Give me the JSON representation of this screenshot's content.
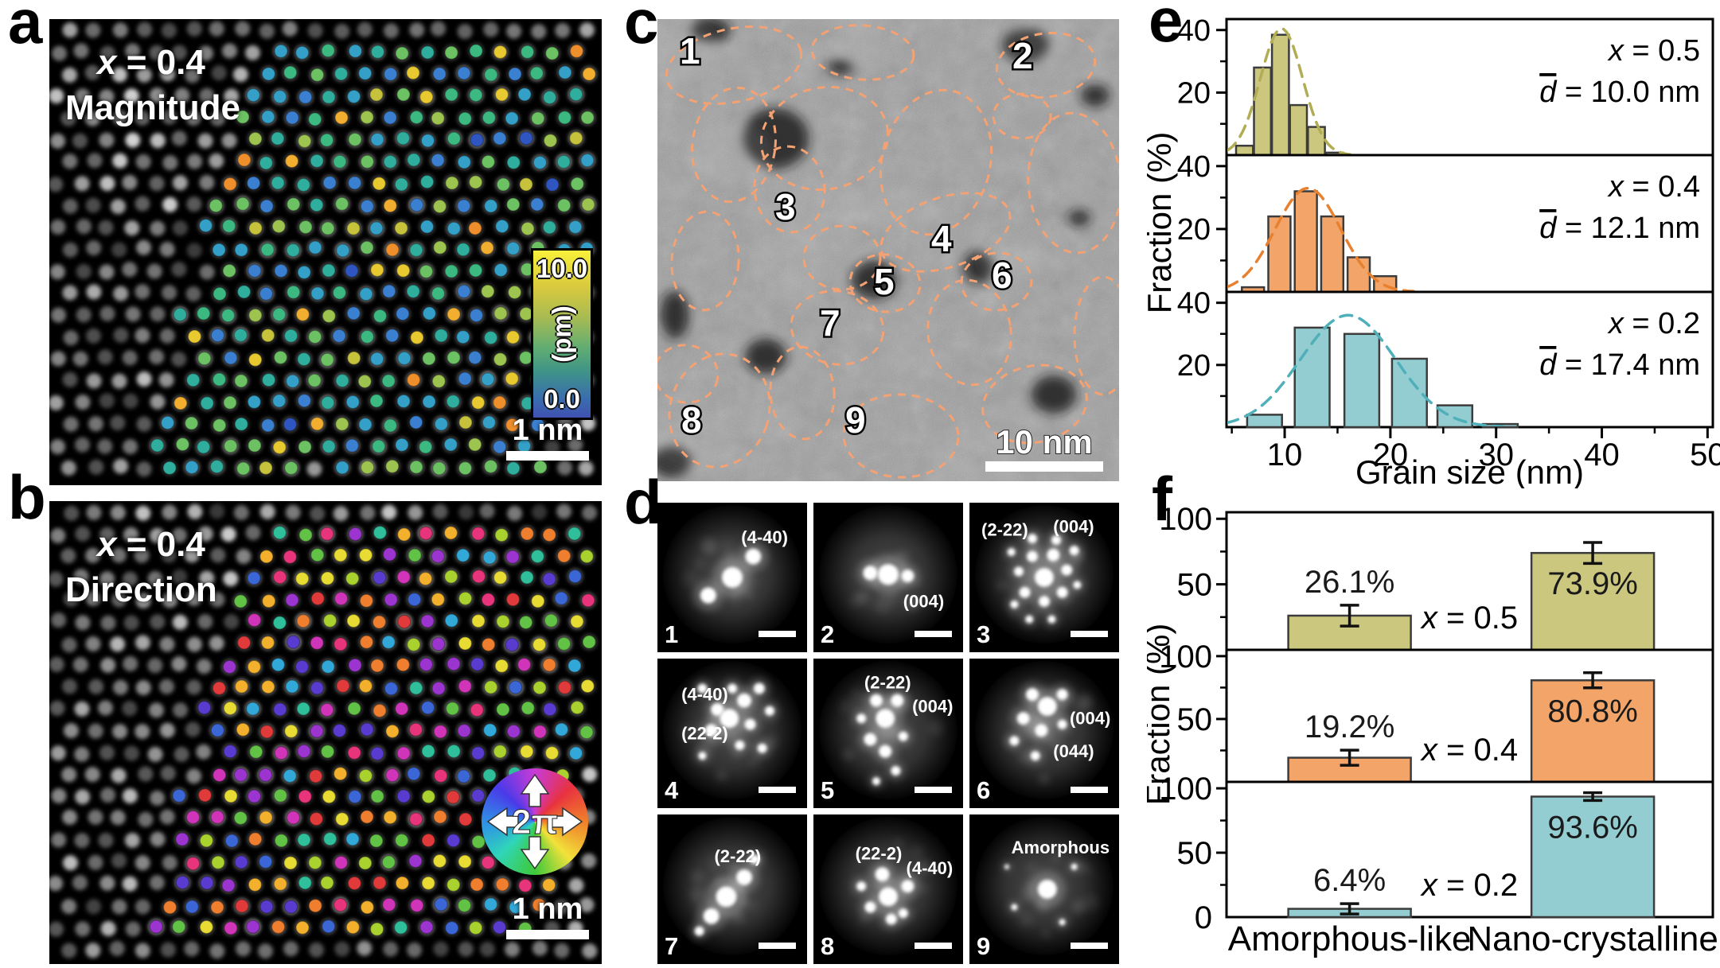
{
  "panels": {
    "a": {
      "letter": "a",
      "sym": "x",
      "eq": " = 0.4",
      "mode": "Magnitude",
      "scalebar": "1 nm",
      "colorbar": {
        "max": "10.0",
        "unit": "(pm)",
        "min": "0.0"
      }
    },
    "b": {
      "letter": "b",
      "sym": "x",
      "eq": " = 0.4",
      "mode": "Direction",
      "scalebar": "1 nm",
      "wheel": "2π"
    },
    "c": {
      "letter": "c",
      "scalebar": "10 nm",
      "numbers": [
        [
          "1",
          28,
          56
        ],
        [
          "2",
          446,
          62
        ],
        [
          "3",
          148,
          252
        ],
        [
          "4",
          344,
          292
        ],
        [
          "5",
          272,
          346
        ],
        [
          "6",
          420,
          338
        ],
        [
          "7",
          204,
          398
        ],
        [
          "8",
          30,
          520
        ],
        [
          "9",
          236,
          520
        ]
      ],
      "outlines": [
        [
          96,
          58,
          86,
          46,
          -12
        ],
        [
          258,
          42,
          64,
          34,
          4
        ],
        [
          488,
          58,
          62,
          40,
          -8
        ],
        [
          458,
          122,
          36,
          28,
          0
        ],
        [
          96,
          158,
          52,
          72,
          8
        ],
        [
          210,
          150,
          80,
          64,
          -10
        ],
        [
          166,
          214,
          44,
          54,
          -6
        ],
        [
          350,
          180,
          68,
          92,
          14
        ],
        [
          524,
          206,
          58,
          88,
          -4
        ],
        [
          60,
          304,
          42,
          62,
          4
        ],
        [
          232,
          300,
          48,
          40,
          0
        ],
        [
          362,
          268,
          84,
          44,
          -18
        ],
        [
          286,
          332,
          44,
          36,
          6
        ],
        [
          426,
          330,
          44,
          36,
          -4
        ],
        [
          226,
          388,
          58,
          46,
          8
        ],
        [
          392,
          394,
          52,
          66,
          -8
        ],
        [
          78,
          492,
          62,
          72,
          18
        ],
        [
          182,
          470,
          40,
          58,
          -4
        ],
        [
          306,
          524,
          72,
          52,
          2
        ],
        [
          474,
          484,
          66,
          48,
          -12
        ],
        [
          560,
          398,
          36,
          74,
          0
        ],
        [
          36,
          446,
          40,
          36,
          10
        ]
      ],
      "blobs": [
        [
          148,
          150,
          42,
          38
        ],
        [
          66,
          14,
          26,
          16
        ],
        [
          464,
          32,
          30,
          22
        ],
        [
          272,
          328,
          28,
          24
        ],
        [
          404,
          312,
          20,
          20
        ],
        [
          136,
          424,
          26,
          22
        ],
        [
          498,
          472,
          28,
          24
        ],
        [
          22,
          372,
          18,
          30
        ],
        [
          18,
          556,
          26,
          20
        ],
        [
          550,
          96,
          18,
          14
        ],
        [
          230,
          60,
          16,
          10
        ],
        [
          530,
          250,
          14,
          10
        ]
      ]
    },
    "d": {
      "letter": "d",
      "cells": [
        {
          "num": "1",
          "ann": [
            [
              "(4-40)",
              0.56,
              0.27
            ]
          ],
          "spots": [
            [
              0.5,
              0.5,
              13
            ],
            [
              0.64,
              0.36,
              10
            ],
            [
              0.34,
              0.62,
              10
            ]
          ]
        },
        {
          "num": "2",
          "ann": [
            [
              "(004)",
              0.6,
              0.7
            ]
          ],
          "spots": [
            [
              0.5,
              0.48,
              13
            ],
            [
              0.38,
              0.47,
              9
            ],
            [
              0.63,
              0.49,
              8
            ]
          ]
        },
        {
          "num": "3",
          "ann": [
            [
              "(2-22)",
              0.08,
              0.22
            ],
            [
              "(004)",
              0.56,
              0.2
            ]
          ],
          "spots": [
            [
              0.5,
              0.5,
              12
            ],
            [
              0.42,
              0.36,
              7
            ],
            [
              0.56,
              0.35,
              8
            ],
            [
              0.65,
              0.45,
              7
            ],
            [
              0.62,
              0.6,
              7
            ],
            [
              0.5,
              0.66,
              7
            ],
            [
              0.37,
              0.6,
              7
            ],
            [
              0.33,
              0.46,
              6
            ],
            [
              0.58,
              0.25,
              6
            ],
            [
              0.42,
              0.24,
              6
            ],
            [
              0.7,
              0.32,
              6
            ],
            [
              0.28,
              0.33,
              5
            ],
            [
              0.72,
              0.55,
              5
            ],
            [
              0.3,
              0.68,
              5
            ],
            [
              0.55,
              0.78,
              5
            ],
            [
              0.4,
              0.78,
              5
            ]
          ]
        },
        {
          "num": "4",
          "ann": [
            [
              "(4-40)",
              0.16,
              0.28
            ],
            [
              "(22-2)",
              0.16,
              0.54
            ]
          ],
          "spots": [
            [
              0.48,
              0.4,
              12
            ],
            [
              0.58,
              0.28,
              9
            ],
            [
              0.4,
              0.34,
              8
            ],
            [
              0.36,
              0.48,
              8
            ],
            [
              0.62,
              0.44,
              7
            ],
            [
              0.5,
              0.2,
              6
            ],
            [
              0.68,
              0.2,
              7
            ],
            [
              0.3,
              0.2,
              6
            ],
            [
              0.75,
              0.35,
              6
            ],
            [
              0.55,
              0.58,
              6
            ],
            [
              0.7,
              0.6,
              6
            ],
            [
              0.3,
              0.65,
              5
            ]
          ]
        },
        {
          "num": "5",
          "ann": [
            [
              "(2-22)",
              0.34,
              0.2
            ],
            [
              "(004)",
              0.66,
              0.36
            ]
          ],
          "spots": [
            [
              0.48,
              0.4,
              12
            ],
            [
              0.42,
              0.28,
              8
            ],
            [
              0.56,
              0.28,
              8
            ],
            [
              0.38,
              0.54,
              8
            ],
            [
              0.48,
              0.62,
              8
            ],
            [
              0.6,
              0.52,
              6
            ],
            [
              0.32,
              0.4,
              6
            ],
            [
              0.55,
              0.75,
              6
            ],
            [
              0.42,
              0.82,
              5
            ]
          ]
        },
        {
          "num": "6",
          "ann": [
            [
              "(004)",
              0.67,
              0.44
            ],
            [
              "(044)",
              0.56,
              0.66
            ]
          ],
          "spots": [
            [
              0.52,
              0.32,
              12
            ],
            [
              0.42,
              0.24,
              8
            ],
            [
              0.62,
              0.24,
              7
            ],
            [
              0.36,
              0.4,
              8
            ],
            [
              0.48,
              0.48,
              8
            ],
            [
              0.62,
              0.44,
              6
            ],
            [
              0.3,
              0.55,
              6
            ],
            [
              0.44,
              0.65,
              6
            ]
          ]
        },
        {
          "num": "7",
          "ann": [
            [
              "(2-22)",
              0.38,
              0.32
            ]
          ],
          "spots": [
            [
              0.46,
              0.55,
              13
            ],
            [
              0.58,
              0.42,
              10
            ],
            [
              0.36,
              0.68,
              10
            ],
            [
              0.28,
              0.78,
              6
            ],
            [
              0.65,
              0.3,
              6
            ]
          ]
        },
        {
          "num": "8",
          "ann": [
            [
              "(22-2)",
              0.28,
              0.3
            ],
            [
              "(4-40)",
              0.62,
              0.4
            ]
          ],
          "spots": [
            [
              0.5,
              0.55,
              12
            ],
            [
              0.46,
              0.4,
              9
            ],
            [
              0.63,
              0.48,
              8
            ],
            [
              0.38,
              0.62,
              7
            ],
            [
              0.52,
              0.7,
              7
            ],
            [
              0.32,
              0.48,
              6
            ],
            [
              0.6,
              0.66,
              6
            ]
          ]
        },
        {
          "num": "9",
          "ann": [
            [
              "Amorphous",
              0.28,
              0.26
            ]
          ],
          "spots": [
            [
              0.52,
              0.5,
              12
            ],
            [
              0.7,
              0.35,
              4
            ],
            [
              0.3,
              0.62,
              4
            ],
            [
              0.62,
              0.72,
              4
            ],
            [
              0.25,
              0.35,
              3
            ]
          ]
        }
      ]
    },
    "e": {
      "letter": "e"
    },
    "f": {
      "letter": "f"
    }
  },
  "palettes": {
    "magnitude": [
      [
        "#2f55c0",
        2
      ],
      [
        "#3a7fd0",
        7
      ],
      [
        "#34a0c8",
        9
      ],
      [
        "#2fae9e",
        10
      ],
      [
        "#3cb980",
        9
      ],
      [
        "#6cc163",
        7
      ],
      [
        "#9cc44f",
        5
      ],
      [
        "#c6c23c",
        4
      ],
      [
        "#e8c930",
        4
      ],
      [
        "#f2ae2e",
        3
      ],
      [
        "#ee8f2c",
        1
      ]
    ],
    "direction": [
      "#e03a3a",
      "#ef7f2e",
      "#f2b02c",
      "#e8dc34",
      "#aad22f",
      "#62c246",
      "#2fbf9a",
      "#32a8d8",
      "#3b66d6",
      "#5a3bd0",
      "#9c34d0",
      "#d034b8",
      "#e8347a"
    ]
  },
  "chart_data": [
    {
      "id": "e",
      "type": "bar",
      "variant": "stacked-histograms",
      "xlabel": "Grain size (nm)",
      "ylabel": "Fraction (%)",
      "xlim": [
        4.5,
        50.5
      ],
      "xticks": [
        10,
        20,
        30,
        40,
        50
      ],
      "xminor_step": 5,
      "ylim": [
        0,
        43.5
      ],
      "yticks": [
        20,
        40
      ],
      "yminor": [
        10,
        30
      ],
      "subplots": [
        {
          "group_sym": "x",
          "group_eq": " = 0.5",
          "dbar_sym": "d",
          "dbar_eq": " = 10.0 nm",
          "fill": "#cbc77f",
          "edge": "#3c3c3c",
          "line": "#b2ad55",
          "centers": [
            6.2,
            7.9,
            9.6,
            11.3,
            13.0,
            14.7
          ],
          "values": [
            3,
            28,
            38.5,
            16,
            9,
            0.8
          ],
          "halfwidth": 0.8,
          "curve": {
            "center": 9.7,
            "peak": 40.5,
            "sigma": 2.0
          }
        },
        {
          "group_sym": "x",
          "group_eq": " = 0.4",
          "dbar_sym": "d",
          "dbar_eq": " = 12.1 nm",
          "fill": "#f2a469",
          "edge": "#3c3c3c",
          "line": "#e8812f",
          "centers": [
            7.0,
            9.5,
            12.0,
            14.5,
            17.0,
            19.5
          ],
          "values": [
            1.5,
            24,
            32,
            24,
            11,
            5
          ],
          "halfwidth": 1.05,
          "curve": {
            "center": 12.2,
            "peak": 33,
            "sigma": 3.1
          }
        },
        {
          "group_sym": "x",
          "group_eq": " = 0.2",
          "dbar_sym": "d",
          "dbar_eq": " = 17.4 nm",
          "fill": "#93ccd1",
          "edge": "#3c3c3c",
          "line": "#4fb0ba",
          "centers": [
            8.1,
            12.6,
            17.3,
            21.8,
            26.1,
            30.4
          ],
          "values": [
            4,
            32,
            30,
            22,
            7,
            1
          ],
          "halfwidth": 1.65,
          "curve": {
            "center": 16.0,
            "peak": 36,
            "sigma": 4.5
          }
        }
      ]
    },
    {
      "id": "f",
      "type": "bar",
      "variant": "stacked-bar-panels",
      "ylabel": "Fraction (%)",
      "categories": [
        "Amorphous-like",
        "Nano-crystalline"
      ],
      "ylim": [
        0,
        105
      ],
      "yticks": [
        50,
        100
      ],
      "ytick_zero": "0",
      "yminor": [
        25,
        75
      ],
      "bar_centers_frac": [
        0.253,
        0.753
      ],
      "bar_halfwidth_frac": 0.126,
      "subplots": [
        {
          "group_sym": "x",
          "group_eq": " = 0.5",
          "fill": "#cbc77f",
          "edge": "#3c3c3c",
          "values": [
            26.1,
            73.9
          ],
          "errors": [
            8,
            8
          ],
          "labels": [
            "26.1%",
            "73.9%"
          ]
        },
        {
          "group_sym": "x",
          "group_eq": " = 0.4",
          "fill": "#f2a469",
          "edge": "#3c3c3c",
          "values": [
            19.2,
            80.8
          ],
          "errors": [
            6,
            6
          ],
          "labels": [
            "19.2%",
            "80.8%"
          ]
        },
        {
          "group_sym": "x",
          "group_eq": " = 0.2",
          "fill": "#93ccd1",
          "edge": "#3c3c3c",
          "values": [
            6.4,
            93.6
          ],
          "errors": [
            4,
            3
          ],
          "labels": [
            "6.4%",
            "93.6%"
          ]
        }
      ]
    }
  ]
}
